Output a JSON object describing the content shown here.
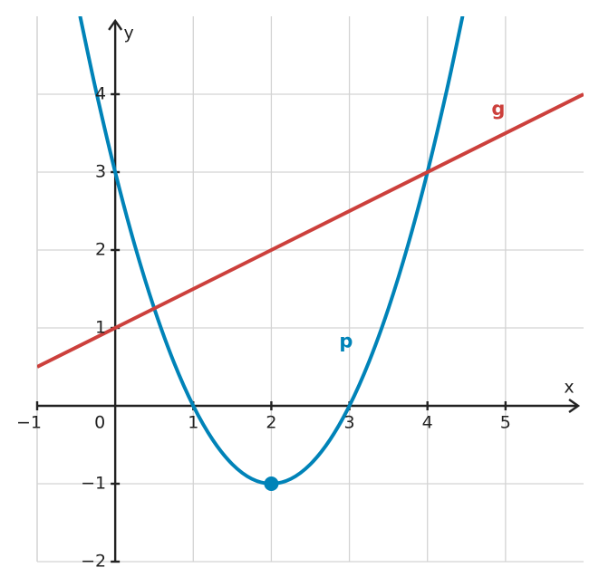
{
  "chart_data": {
    "type": "line",
    "xlabel": "x",
    "ylabel": "y",
    "xlim": [
      -1,
      6
    ],
    "ylim": [
      -2,
      5
    ],
    "xticks": [
      {
        "value": -1,
        "label": "−1"
      },
      0,
      1,
      2,
      3,
      4,
      5
    ],
    "yticks": [
      {
        "value": -2,
        "label": "−2"
      },
      {
        "value": -1,
        "label": "−1"
      },
      1,
      2,
      3,
      4
    ],
    "grid": true,
    "series": [
      {
        "name": "p",
        "color": "#0083b8",
        "x": [
          -0.45,
          -0.25,
          0,
          0.25,
          0.5,
          0.75,
          1,
          1.25,
          1.5,
          1.75,
          2,
          2.25,
          2.5,
          2.75,
          3,
          3.25,
          3.5,
          3.75,
          4,
          4.25,
          4.45
        ],
        "values": [
          5.0025,
          4.0625,
          3,
          2.0625,
          1.25,
          0.5625,
          0,
          -0.4375,
          -0.75,
          -0.9375,
          -1,
          -0.9375,
          -0.75,
          -0.4375,
          0,
          0.5625,
          1.25,
          2.0625,
          3,
          4.0625,
          5.0025
        ]
      },
      {
        "name": "g",
        "color": "#cc403c",
        "x": [
          -1,
          6
        ],
        "values": [
          0.5,
          4
        ]
      }
    ],
    "points": [
      {
        "x": 2,
        "y": -1,
        "color": "#0083b8"
      }
    ]
  }
}
